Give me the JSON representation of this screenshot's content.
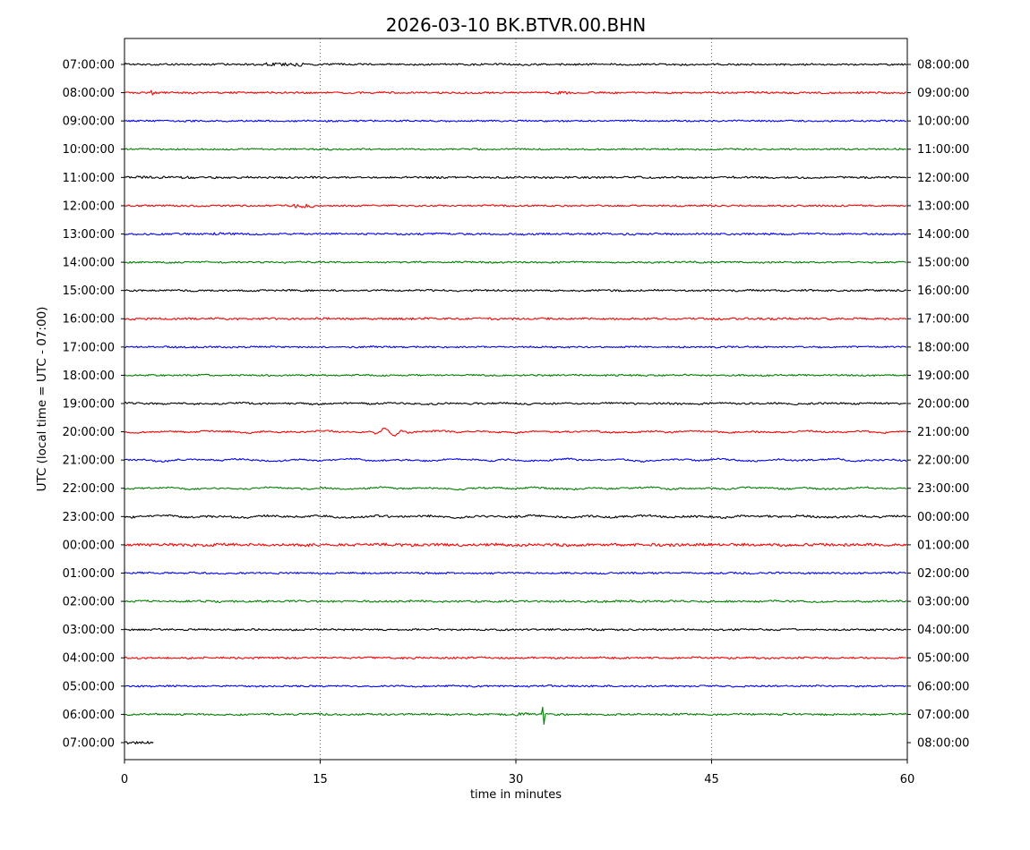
{
  "chart_data": {
    "type": "line",
    "subtype": "helicorder-dayplot",
    "title": "2026-03-10 BK.BTVR.00.BHN",
    "date": "2026-03-10",
    "station_id": "BK.BTVR.00.BHN",
    "xlabel": "time in minutes",
    "ylabel": "UTC (local time = UTC - 07:00)",
    "xlim": [
      0,
      60
    ],
    "xticks": [
      0,
      15,
      30,
      45,
      60
    ],
    "grid": "vertical dotted gridlines at 15, 30, 45 minutes",
    "minutes_per_row": 60,
    "colors_cycle": [
      "#000000",
      "#ff0000",
      "#0000ff",
      "#008000"
    ],
    "rows": [
      {
        "utc_left": "07:00:00",
        "utc_right": "08:00:00",
        "color": "#000000",
        "noise": 1.0,
        "wave": 0.25,
        "coverage": 1,
        "events": [
          {
            "type": "burst",
            "min": 12.3,
            "width": 1.5,
            "factor": 1.9
          }
        ]
      },
      {
        "utc_left": "08:00:00",
        "utc_right": "09:00:00",
        "color": "#ff0000",
        "noise": 1.0,
        "wave": 0.2,
        "coverage": 1,
        "events": [
          {
            "type": "spike",
            "min": 2.1,
            "up": 2.5,
            "down": 2.5
          },
          {
            "type": "burst",
            "min": 33.8,
            "width": 0.7,
            "factor": 2.0
          }
        ]
      },
      {
        "utc_left": "09:00:00",
        "utc_right": "10:00:00",
        "color": "#0000ff",
        "noise": 0.9,
        "wave": 0.2,
        "coverage": 1,
        "events": []
      },
      {
        "utc_left": "10:00:00",
        "utc_right": "11:00:00",
        "color": "#008000",
        "noise": 0.9,
        "wave": 0.2,
        "coverage": 1,
        "events": []
      },
      {
        "utc_left": "11:00:00",
        "utc_right": "12:00:00",
        "color": "#000000",
        "noise": 1.1,
        "wave": 0.2,
        "coverage": 1,
        "events": [
          {
            "type": "burst",
            "min": 6.0,
            "width": 5.0,
            "factor": 1.25
          }
        ]
      },
      {
        "utc_left": "12:00:00",
        "utc_right": "13:00:00",
        "color": "#ff0000",
        "noise": 0.9,
        "wave": 0.2,
        "coverage": 1,
        "events": [
          {
            "type": "burst",
            "min": 13.7,
            "width": 0.8,
            "factor": 2.4
          }
        ]
      },
      {
        "utc_left": "13:00:00",
        "utc_right": "14:00:00",
        "color": "#0000ff",
        "noise": 1.0,
        "wave": 0.3,
        "coverage": 1,
        "events": [
          {
            "type": "burst",
            "min": 7.5,
            "width": 1.0,
            "factor": 1.5
          }
        ]
      },
      {
        "utc_left": "14:00:00",
        "utc_right": "15:00:00",
        "color": "#008000",
        "noise": 0.9,
        "wave": 0.25,
        "coverage": 1,
        "events": []
      },
      {
        "utc_left": "15:00:00",
        "utc_right": "16:00:00",
        "color": "#000000",
        "noise": 1.0,
        "wave": 0.3,
        "coverage": 1,
        "events": []
      },
      {
        "utc_left": "16:00:00",
        "utc_right": "17:00:00",
        "color": "#ff0000",
        "noise": 1.1,
        "wave": 0.3,
        "coverage": 1,
        "events": []
      },
      {
        "utc_left": "17:00:00",
        "utc_right": "18:00:00",
        "color": "#0000ff",
        "noise": 0.9,
        "wave": 0.25,
        "coverage": 1,
        "events": []
      },
      {
        "utc_left": "18:00:00",
        "utc_right": "19:00:00",
        "color": "#008000",
        "noise": 0.9,
        "wave": 0.25,
        "coverage": 1,
        "events": []
      },
      {
        "utc_left": "19:00:00",
        "utc_right": "20:00:00",
        "color": "#000000",
        "noise": 1.0,
        "wave": 0.55,
        "coverage": 1,
        "events": []
      },
      {
        "utc_left": "20:00:00",
        "utc_right": "21:00:00",
        "color": "#ff0000",
        "noise": 0.9,
        "wave": 0.9,
        "coverage": 1,
        "events": [
          {
            "type": "wiggle",
            "min": 20.3,
            "amp": 4.0,
            "period": 1.4,
            "width": 1.3
          }
        ]
      },
      {
        "utc_left": "21:00:00",
        "utc_right": "22:00:00",
        "color": "#0000ff",
        "noise": 0.9,
        "wave": 1.1,
        "coverage": 1,
        "events": []
      },
      {
        "utc_left": "22:00:00",
        "utc_right": "23:00:00",
        "color": "#008000",
        "noise": 0.9,
        "wave": 0.9,
        "coverage": 1,
        "events": []
      },
      {
        "utc_left": "23:00:00",
        "utc_right": "00:00:00",
        "color": "#000000",
        "noise": 1.1,
        "wave": 0.9,
        "coverage": 1,
        "events": []
      },
      {
        "utc_left": "00:00:00",
        "utc_right": "01:00:00",
        "color": "#ff0000",
        "noise": 1.5,
        "wave": 0.4,
        "coverage": 1,
        "events": []
      },
      {
        "utc_left": "01:00:00",
        "utc_right": "02:00:00",
        "color": "#0000ff",
        "noise": 1.0,
        "wave": 0.3,
        "coverage": 1,
        "events": []
      },
      {
        "utc_left": "02:00:00",
        "utc_right": "03:00:00",
        "color": "#008000",
        "noise": 1.1,
        "wave": 0.3,
        "coverage": 1,
        "events": []
      },
      {
        "utc_left": "03:00:00",
        "utc_right": "04:00:00",
        "color": "#000000",
        "noise": 1.0,
        "wave": 0.25,
        "coverage": 1,
        "events": []
      },
      {
        "utc_left": "04:00:00",
        "utc_right": "05:00:00",
        "color": "#ff0000",
        "noise": 1.0,
        "wave": 0.3,
        "coverage": 1,
        "events": []
      },
      {
        "utc_left": "05:00:00",
        "utc_right": "06:00:00",
        "color": "#0000ff",
        "noise": 0.9,
        "wave": 0.25,
        "coverage": 1,
        "events": []
      },
      {
        "utc_left": "06:00:00",
        "utc_right": "07:00:00",
        "color": "#008000",
        "noise": 1.0,
        "wave": 0.3,
        "coverage": 1,
        "events": [
          {
            "type": "burst",
            "min": 30.5,
            "width": 0.5,
            "factor": 1.8
          },
          {
            "type": "spike",
            "min": 32.1,
            "up": 8,
            "down": 11
          }
        ]
      },
      {
        "utc_left": "07:00:00",
        "utc_right": "08:00:00",
        "color": "#000000",
        "noise": 1.4,
        "wave": 0.2,
        "coverage": 0.037,
        "events": []
      }
    ],
    "notable_events": [
      {
        "row_utc": "20:00:00",
        "minute": 20.3,
        "description": "long-period dip-then-peak wiggle, gentle waviness minutes 13-35"
      },
      {
        "row_utc": "06:00:00",
        "minute": 32.1,
        "description": "sharp high-amplitude spike (local event)"
      },
      {
        "row_utc": "07:00:00 (last row)",
        "minute": 0,
        "description": "partial trace covering only ~2 minutes"
      }
    ]
  }
}
